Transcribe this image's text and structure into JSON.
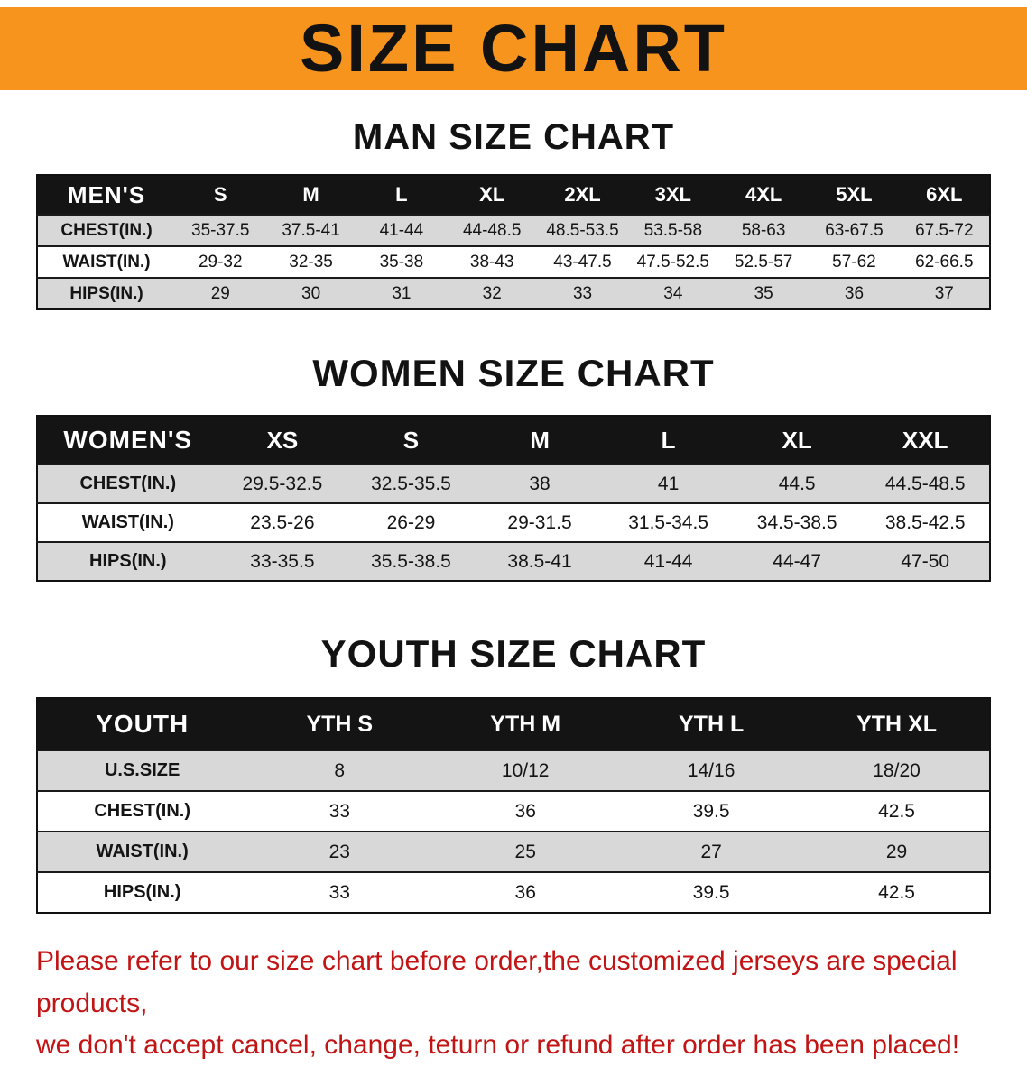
{
  "banner": {
    "title": "SIZE CHART",
    "bg_color": "#f7941d",
    "text_color": "#121212"
  },
  "sections": [
    {
      "title": "MAN SIZE CHART",
      "table": {
        "header": [
          "MEN'S",
          "S",
          "M",
          "L",
          "XL",
          "2XL",
          "3XL",
          "4XL",
          "5XL",
          "6XL"
        ],
        "rows": [
          [
            "CHEST(IN.)",
            "35-37.5",
            "37.5-41",
            "41-44",
            "44-48.5",
            "48.5-53.5",
            "53.5-58",
            "58-63",
            "63-67.5",
            "67.5-72"
          ],
          [
            "WAIST(IN.)",
            "29-32",
            "32-35",
            "35-38",
            "38-43",
            "43-47.5",
            "47.5-52.5",
            "52.5-57",
            "57-62",
            "62-66.5"
          ],
          [
            "HIPS(IN.)",
            "29",
            "30",
            "31",
            "32",
            "33",
            "34",
            "35",
            "36",
            "37"
          ]
        ]
      }
    },
    {
      "title": "WOMEN SIZE CHART",
      "table": {
        "header": [
          "WOMEN'S",
          "XS",
          "S",
          "M",
          "L",
          "XL",
          "XXL"
        ],
        "rows": [
          [
            "CHEST(IN.)",
            "29.5-32.5",
            "32.5-35.5",
            "38",
            "41",
            "44.5",
            "44.5-48.5"
          ],
          [
            "WAIST(IN.)",
            "23.5-26",
            "26-29",
            "29-31.5",
            "31.5-34.5",
            "34.5-38.5",
            "38.5-42.5"
          ],
          [
            "HIPS(IN.)",
            "33-35.5",
            "35.5-38.5",
            "38.5-41",
            "41-44",
            "44-47",
            "47-50"
          ]
        ]
      }
    },
    {
      "title": "YOUTH SIZE CHART",
      "table": {
        "header": [
          "YOUTH",
          "YTH S",
          "YTH M",
          "YTH L",
          "YTH XL"
        ],
        "rows": [
          [
            "U.S.SIZE",
            "8",
            "10/12",
            "14/16",
            "18/20"
          ],
          [
            "CHEST(IN.)",
            "33",
            "36",
            "39.5",
            "42.5"
          ],
          [
            "WAIST(IN.)",
            "23",
            "25",
            "27",
            "29"
          ],
          [
            "HIPS(IN.)",
            "33",
            "36",
            "39.5",
            "42.5"
          ]
        ]
      }
    }
  ],
  "footer": {
    "line1": "Please refer to our size chart before order,the customized jerseys are special products,",
    "line2": "we don't accept cancel, change, teturn or refund after order has been placed!",
    "color": "#c21414"
  }
}
